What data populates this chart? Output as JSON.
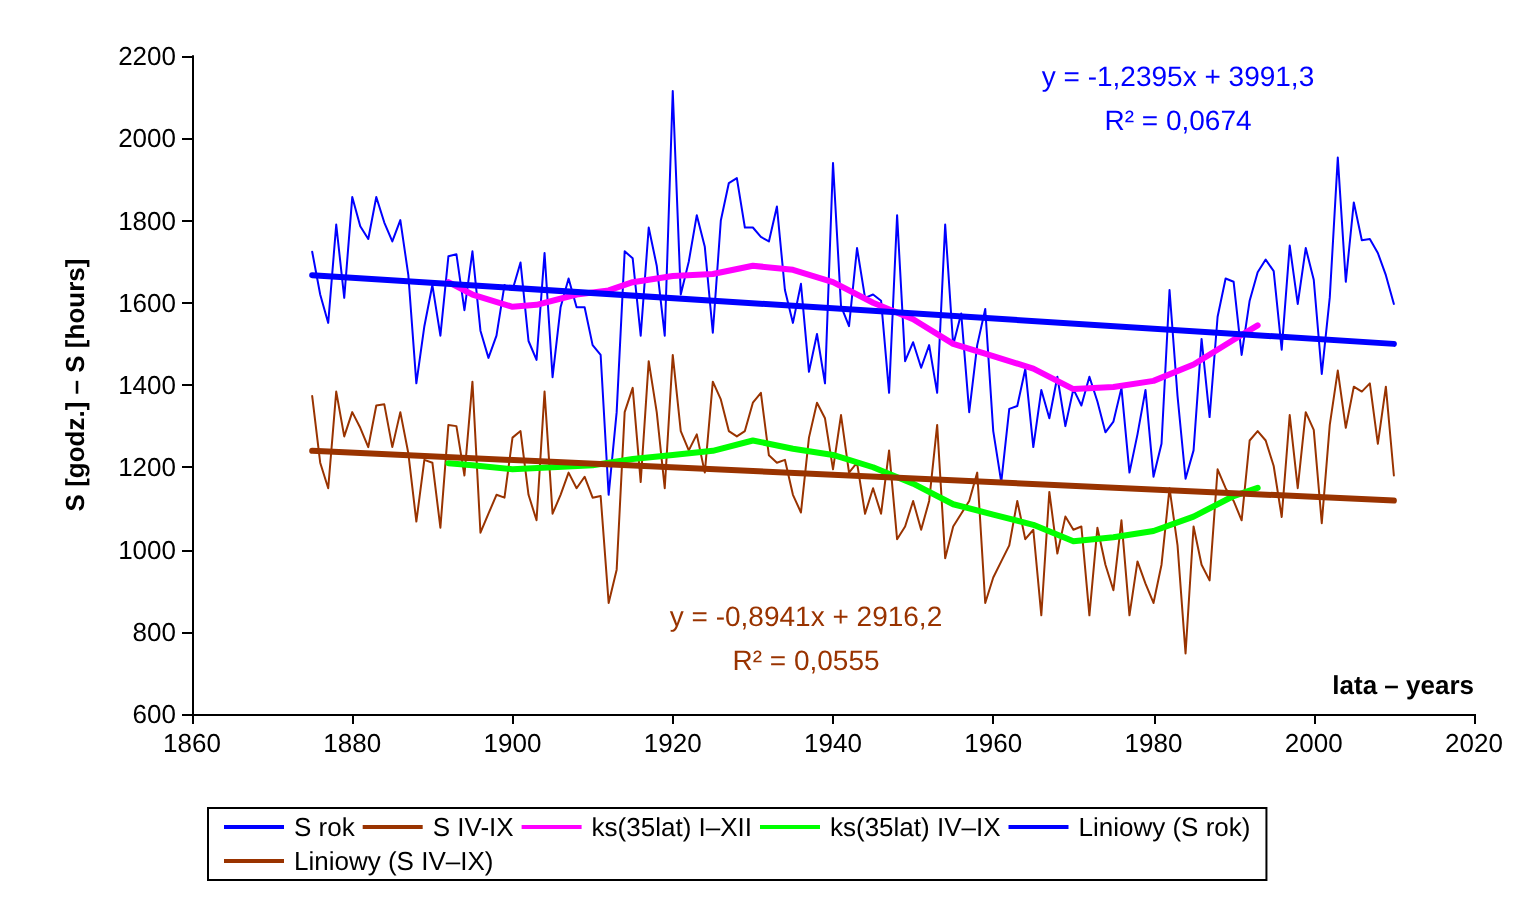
{
  "chart_data": {
    "type": "line",
    "xlabel": "lata – years",
    "ylabel": "S [godz.] – S [hours]",
    "x": [
      1875,
      1876,
      1877,
      1878,
      1879,
      1880,
      1881,
      1882,
      1883,
      1884,
      1885,
      1886,
      1887,
      1888,
      1889,
      1890,
      1891,
      1892,
      1893,
      1894,
      1895,
      1896,
      1897,
      1898,
      1899,
      1900,
      1901,
      1902,
      1903,
      1904,
      1905,
      1906,
      1907,
      1908,
      1909,
      1910,
      1911,
      1912,
      1913,
      1914,
      1915,
      1916,
      1917,
      1918,
      1919,
      1920,
      1921,
      1922,
      1923,
      1924,
      1925,
      1926,
      1927,
      1928,
      1929,
      1930,
      1931,
      1932,
      1933,
      1934,
      1935,
      1936,
      1937,
      1938,
      1939,
      1940,
      1941,
      1942,
      1943,
      1944,
      1945,
      1946,
      1947,
      1948,
      1949,
      1950,
      1951,
      1952,
      1953,
      1954,
      1955,
      1956,
      1957,
      1958,
      1959,
      1960,
      1961,
      1962,
      1963,
      1964,
      1965,
      1966,
      1967,
      1968,
      1969,
      1970,
      1971,
      1972,
      1973,
      1974,
      1975,
      1976,
      1977,
      1978,
      1979,
      1980,
      1981,
      1982,
      1983,
      1984,
      1985,
      1986,
      1987,
      1988,
      1989,
      1990,
      1991,
      1992,
      1993,
      1994,
      1995,
      1996,
      1997,
      1998,
      1999,
      2000,
      2001,
      2002,
      2003,
      2004,
      2005,
      2006,
      2007,
      2008,
      2009,
      2010
    ],
    "series": [
      {
        "name": "S rok",
        "color": "#0000ff",
        "values": [
          1724,
          1620,
          1551,
          1790,
          1612,
          1857,
          1786,
          1755,
          1857,
          1795,
          1749,
          1801,
          1667,
          1404,
          1543,
          1643,
          1520,
          1713,
          1718,
          1582,
          1725,
          1532,
          1466,
          1520,
          1643,
          1631,
          1698,
          1507,
          1461,
          1721,
          1419,
          1589,
          1659,
          1589,
          1589,
          1497,
          1473,
          1133,
          1334,
          1725,
          1708,
          1520,
          1783,
          1690,
          1520,
          2115,
          1620,
          1700,
          1813,
          1736,
          1527,
          1800,
          1891,
          1903,
          1783,
          1783,
          1760,
          1749,
          1834,
          1631,
          1551,
          1646,
          1432,
          1524,
          1404,
          1940,
          1592,
          1543,
          1733,
          1612,
          1620,
          1605,
          1381,
          1813,
          1458,
          1504,
          1442,
          1497,
          1381,
          1790,
          1497,
          1574,
          1334,
          1497,
          1585,
          1288,
          1164,
          1342,
          1349,
          1439,
          1249,
          1388,
          1319,
          1420,
          1300,
          1390,
          1350,
          1420,
          1360,
          1285,
          1311,
          1393,
          1187,
          1280,
          1388,
          1177,
          1257,
          1631,
          1373,
          1172,
          1241,
          1512,
          1322,
          1566,
          1659,
          1651,
          1473,
          1605,
          1674,
          1705,
          1677,
          1486,
          1739,
          1597,
          1733,
          1656,
          1427,
          1613,
          1953,
          1651,
          1844,
          1752,
          1755,
          1721,
          1667,
          1597
        ]
      },
      {
        "name": "S IV-IX",
        "color": "#993300",
        "values": [
          1373,
          1211,
          1149,
          1384,
          1275,
          1334,
          1296,
          1249,
          1350,
          1353,
          1249,
          1334,
          1234,
          1068,
          1218,
          1211,
          1053,
          1303,
          1300,
          1180,
          1408,
          1041,
          1087,
          1133,
          1126,
          1272,
          1288,
          1133,
          1071,
          1384,
          1087,
          1133,
          1187,
          1149,
          1177,
          1126,
          1130,
          870,
          951,
          1334,
          1393,
          1164,
          1458,
          1334,
          1149,
          1473,
          1288,
          1241,
          1280,
          1187,
          1408,
          1365,
          1288,
          1275,
          1288,
          1357,
          1381,
          1229,
          1211,
          1218,
          1133,
          1090,
          1272,
          1357,
          1319,
          1195,
          1327,
          1187,
          1211,
          1087,
          1149,
          1087,
          1241,
          1025,
          1056,
          1118,
          1048,
          1118,
          1303,
          979,
          1056,
          1087,
          1118,
          1187,
          870,
          932,
          971,
          1010,
          1118,
          1025,
          1048,
          840,
          1140,
          990,
          1080,
          1048,
          1056,
          840,
          1053,
          963,
          901,
          1071,
          840,
          971,
          917,
          870,
          963,
          1149,
          1010,
          747,
          1056,
          963,
          925,
          1195,
          1149,
          1118,
          1071,
          1265,
          1288,
          1265,
          1203,
          1079,
          1327,
          1149,
          1334,
          1291,
          1064,
          1303,
          1435,
          1296,
          1396,
          1384,
          1404,
          1257,
          1396,
          1180
        ]
      },
      {
        "name": "ks(35lat) I–XII",
        "color": "#ff00ff",
        "x": [
          1892,
          1895,
          1900,
          1903,
          1908,
          1912,
          1915,
          1920,
          1925,
          1930,
          1935,
          1940,
          1945,
          1950,
          1955,
          1960,
          1965,
          1970,
          1975,
          1980,
          1985,
          1990,
          1993
        ],
        "values": [
          1650,
          1620,
          1590,
          1595,
          1620,
          1630,
          1650,
          1665,
          1670,
          1690,
          1680,
          1650,
          1600,
          1560,
          1500,
          1470,
          1440,
          1390,
          1395,
          1410,
          1450,
          1510,
          1545
        ]
      },
      {
        "name": "ks(35lat) IV–IX",
        "color": "#00ff00",
        "x": [
          1892,
          1895,
          1900,
          1905,
          1910,
          1915,
          1920,
          1925,
          1930,
          1935,
          1940,
          1945,
          1950,
          1955,
          1960,
          1965,
          1970,
          1975,
          1980,
          1985,
          1990,
          1993
        ],
        "values": [
          1210,
          1205,
          1195,
          1200,
          1205,
          1220,
          1230,
          1240,
          1265,
          1245,
          1230,
          1200,
          1160,
          1110,
          1085,
          1060,
          1020,
          1030,
          1045,
          1080,
          1130,
          1150
        ]
      },
      {
        "name": "Liniowy (S rok)",
        "color": "#0000ff",
        "x": [
          1875,
          2010
        ],
        "values": [
          1667,
          1500
        ]
      },
      {
        "name": "Liniowy (S IV–IX)",
        "color": "#993300",
        "x": [
          1875,
          2010
        ],
        "values": [
          1240,
          1119
        ]
      }
    ],
    "annotations": [
      "y = -1,2395x + 3991,3",
      "R² = 0,0674",
      "y = -0,8941x + 2916,2",
      "R² = 0,0555"
    ],
    "xlim": [
      1860,
      2020
    ],
    "xticks": [
      1860,
      1880,
      1900,
      1920,
      1940,
      1960,
      1980,
      2000,
      2020
    ],
    "ylim": [
      600,
      2200
    ],
    "yticks": [
      600,
      800,
      1000,
      1200,
      1400,
      1600,
      1800,
      2000,
      2200
    ],
    "grid": false,
    "legend": "bottom",
    "marker": "none",
    "line_style": "solid"
  }
}
